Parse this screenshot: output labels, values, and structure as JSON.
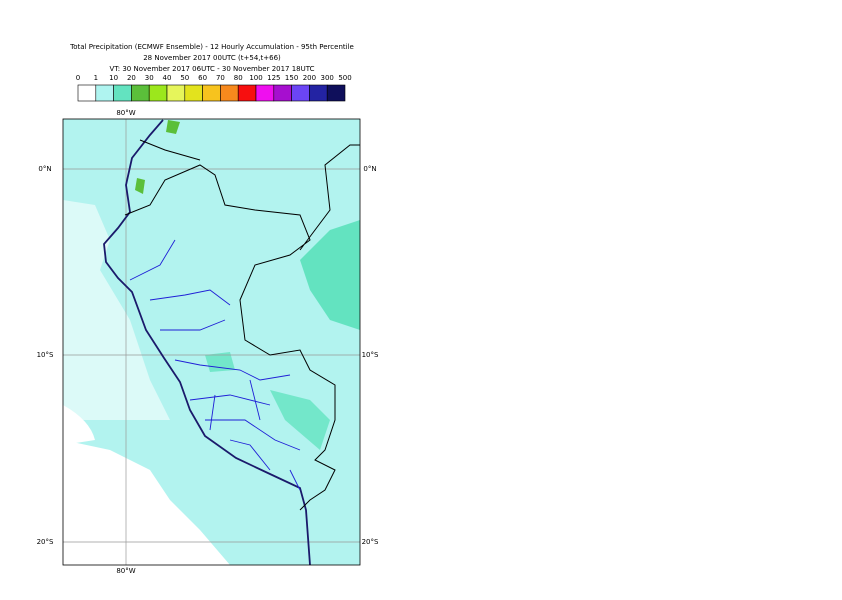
{
  "header": {
    "lines": [
      "Total Precipitation (ECMWF Ensemble) - 12 Hourly Accumulation - 95th Percentile",
      "28 November 2017 00UTC (t+54,t+66)",
      "VT: 30 November 2017 06UTC - 30 November 2017 18UTC"
    ]
  },
  "legend": {
    "labels": [
      0,
      1,
      10,
      20,
      30,
      40,
      50,
      60,
      70,
      80,
      100,
      125,
      150,
      200,
      300,
      500
    ],
    "colors": [
      "#ffffff",
      "#aff4f0",
      "#63e3c0",
      "#5bbf3a",
      "#9ce71c",
      "#e6f55b",
      "#e3e31d",
      "#f7c31e",
      "#f7891d",
      "#f70f0f",
      "#ef0fef",
      "#a60fcf",
      "#6b45f5",
      "#2323a3",
      "#0f0f5b"
    ]
  },
  "map": {
    "lat_labels": [
      "0°N",
      "10°S",
      "20°S"
    ],
    "lon_labels": [
      "80°W"
    ]
  }
}
